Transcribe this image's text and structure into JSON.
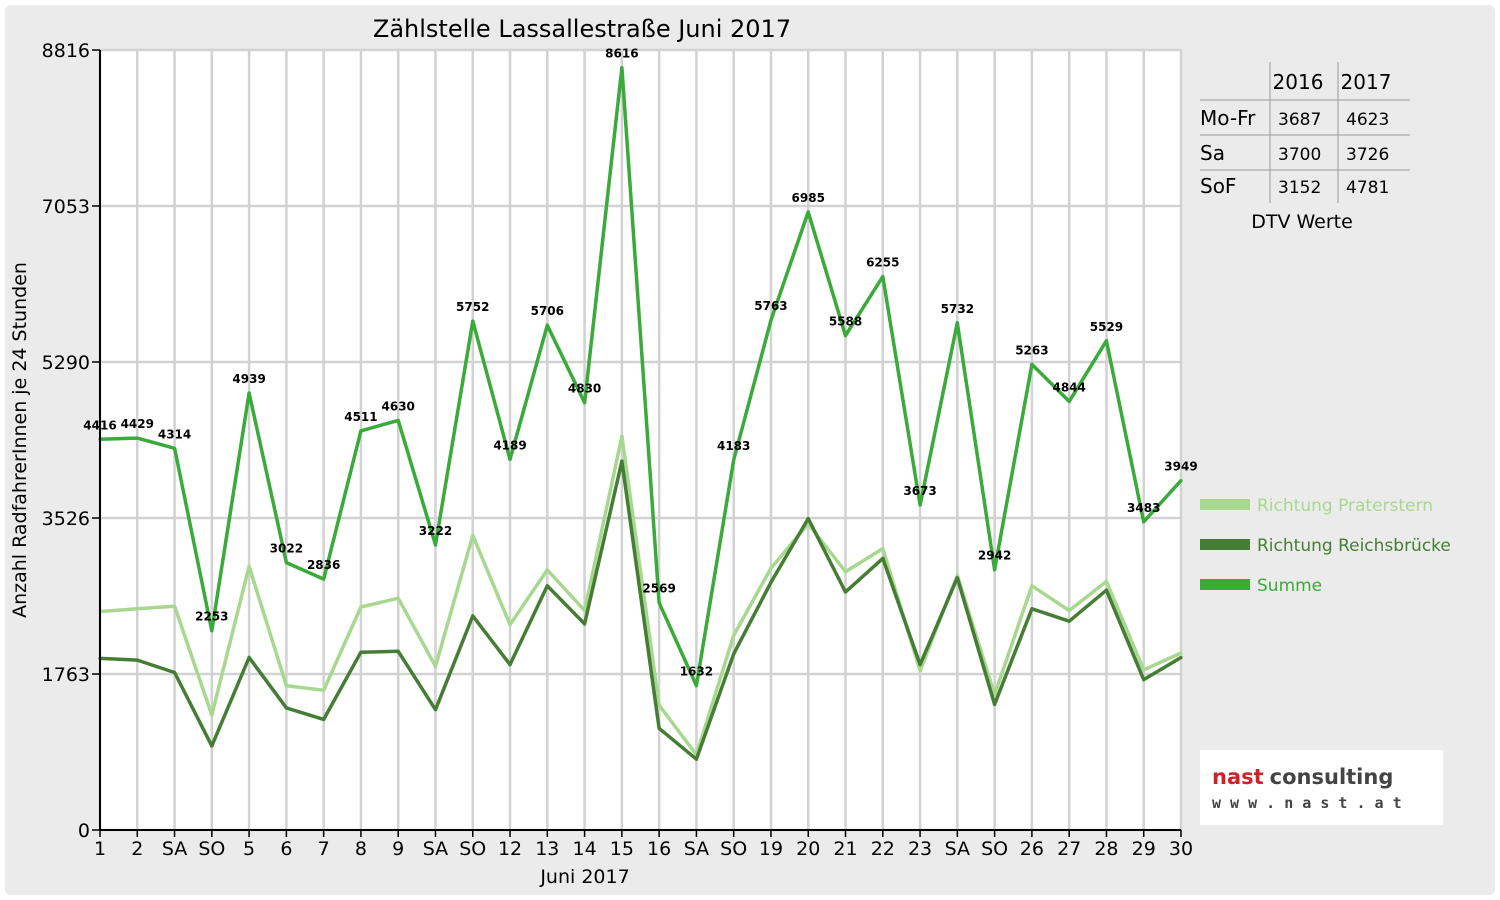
{
  "chart_data": {
    "type": "line",
    "title": "Zählstelle Lassallestraße Juni 2017",
    "xlabel": "Juni 2017",
    "ylabel": "Anzahl RadfahrerInnen je 24 Stunden",
    "ylim": [
      0,
      8816
    ],
    "yticks": [
      0,
      1763,
      3526,
      5290,
      7053,
      8816
    ],
    "grid": true,
    "categories": [
      "1",
      "2",
      "SA",
      "SO",
      "5",
      "6",
      "7",
      "8",
      "9",
      "SA",
      "SO",
      "12",
      "13",
      "14",
      "15",
      "16",
      "SA",
      "SO",
      "19",
      "20",
      "21",
      "22",
      "23",
      "SA",
      "SO",
      "26",
      "27",
      "28",
      "29",
      "30"
    ],
    "red_categories": [
      3,
      4,
      10,
      14,
      17,
      24
    ],
    "series": [
      {
        "name": "Richtung Praterstern",
        "color": "#a8d890",
        "values": [
          2470,
          2500,
          2530,
          1300,
          2980,
          1630,
          1580,
          2520,
          2620,
          1850,
          3330,
          2320,
          2940,
          2480,
          4450,
          1410,
          850,
          2200,
          2960,
          3460,
          2920,
          3180,
          1800,
          2880,
          1530,
          2760,
          2480,
          2810,
          1810,
          2000
        ],
        "labels": []
      },
      {
        "name": "Richtung Reichsbrücke",
        "color": "#467d35",
        "values": [
          1940,
          1920,
          1780,
          950,
          1950,
          1380,
          1250,
          2010,
          2020,
          1360,
          2420,
          1870,
          2760,
          2330,
          4170,
          1150,
          800,
          1990,
          2800,
          3520,
          2690,
          3070,
          1870,
          2850,
          1420,
          2500,
          2360,
          2710,
          1700,
          1950
        ],
        "labels": []
      },
      {
        "name": "Summe",
        "color": "#3aaa3a",
        "values": [
          4416,
          4429,
          4314,
          2253,
          4939,
          3022,
          2836,
          4511,
          4630,
          3222,
          5752,
          4189,
          5706,
          4830,
          8616,
          2569,
          1632,
          4183,
          5763,
          6985,
          5588,
          6255,
          3673,
          5732,
          2942,
          5263,
          4844,
          5529,
          3483,
          3949
        ],
        "labels": [
          "4416",
          "4429",
          "4314",
          "2253",
          "4939",
          "3022",
          "2836",
          "4511",
          "4630",
          "3222",
          "5752",
          "4189",
          "5706",
          "4830",
          "8616",
          "2569",
          "1632",
          "4183",
          "5763",
          "6985",
          "5588",
          "6255",
          "3673",
          "5732",
          "2942",
          "5263",
          "4844",
          "5529",
          "3483",
          "3949"
        ]
      }
    ],
    "legend_position": "right"
  },
  "dtv_table": {
    "col_headers": [
      "2016",
      "2017"
    ],
    "rows": [
      {
        "label": "Mo-Fr",
        "v2016": "3687",
        "v2017": "4623"
      },
      {
        "label": "Sa",
        "v2016": "3700",
        "v2017": "3726"
      },
      {
        "label": "SoF",
        "v2016": "3152",
        "v2017": "4781"
      }
    ],
    "caption": "DTV Werte"
  },
  "logo": {
    "line1": "nast consulting",
    "line2": "w w w . n a s t . a t"
  }
}
